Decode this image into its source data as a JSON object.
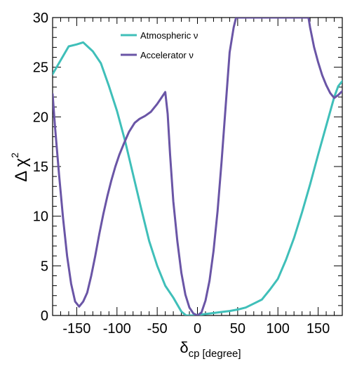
{
  "chart_data": {
    "type": "line",
    "xlabel": {
      "symbol": "δ",
      "subscript": "cp",
      "unit": "[degree]"
    },
    "ylabel": {
      "symbol": "Δ χ",
      "superscript": "2"
    },
    "xlim": [
      -180,
      180
    ],
    "ylim": [
      0,
      30
    ],
    "x_ticks": [
      -150,
      -100,
      -50,
      0,
      50,
      100,
      150
    ],
    "x_tick_labels": [
      "-150",
      "-100",
      "-50",
      "0",
      "50",
      "100",
      "150"
    ],
    "y_ticks": [
      0,
      5,
      10,
      15,
      20,
      25,
      30
    ],
    "y_tick_labels": [
      "0",
      "5",
      "10",
      "15",
      "20",
      "25",
      "30"
    ],
    "grid": false,
    "legend_position": "top-center",
    "series": [
      {
        "name": "Atmospheric ν",
        "color": "#3fbfb9",
        "x": [
          -180,
          -170,
          -160,
          -150,
          -142,
          -130,
          -120,
          -110,
          -100,
          -90,
          -80,
          -70,
          -60,
          -50,
          -40,
          -30,
          -20,
          -14,
          -5,
          0,
          10,
          20,
          30,
          40,
          50,
          60,
          70,
          80,
          90,
          100,
          110,
          120,
          130,
          140,
          150,
          160,
          170,
          175,
          180
        ],
        "y": [
          24.3,
          25.7,
          27.1,
          27.3,
          27.5,
          26.6,
          25.4,
          23.1,
          20.6,
          17.6,
          14.2,
          10.8,
          7.5,
          5.0,
          3.0,
          1.8,
          0.4,
          0.0,
          0.0,
          0.05,
          0.15,
          0.25,
          0.35,
          0.45,
          0.6,
          0.8,
          1.2,
          1.6,
          2.6,
          3.7,
          5.6,
          7.8,
          10.4,
          13.2,
          16.2,
          19.1,
          22.0,
          23.1,
          23.6
        ]
      },
      {
        "name": "Accelerator ν",
        "color": "#6a55a6",
        "x": [
          -180,
          -177,
          -172,
          -167,
          -162,
          -157,
          -152,
          -147,
          -142,
          -137,
          -132,
          -127,
          -122,
          -117,
          -112,
          -107,
          -102,
          -97,
          -92,
          -85,
          -78,
          -72,
          -65,
          -58,
          -50,
          -45,
          -40,
          -37,
          -34,
          -30,
          -25,
          -20,
          -15,
          -10,
          -5,
          0,
          5,
          10,
          15,
          20,
          25,
          30,
          35,
          40,
          45,
          48,
          138,
          140,
          145,
          150,
          155,
          160,
          165,
          170,
          175,
          180
        ],
        "y": [
          22.3,
          19.0,
          14.2,
          9.8,
          6.0,
          3.2,
          1.4,
          0.9,
          1.4,
          2.3,
          4.0,
          6.0,
          8.2,
          10.2,
          12.0,
          13.6,
          15.0,
          16.2,
          17.2,
          18.5,
          19.4,
          19.8,
          20.1,
          20.5,
          21.3,
          21.9,
          22.5,
          20.3,
          16.2,
          11.5,
          7.5,
          4.3,
          2.1,
          0.8,
          0.2,
          0.0,
          0.3,
          1.5,
          3.5,
          6.5,
          10.5,
          15.5,
          21.0,
          26.5,
          29.0,
          30.0,
          30.0,
          29.0,
          27.0,
          25.5,
          24.2,
          23.2,
          22.4,
          21.9,
          22.2,
          22.6
        ]
      }
    ]
  }
}
